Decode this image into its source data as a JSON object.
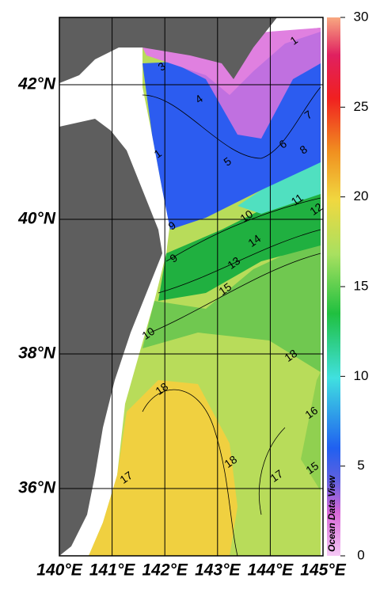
{
  "map": {
    "lat_labels": [
      "42°N",
      "40°N",
      "38°N",
      "36°N"
    ],
    "lon_labels": [
      "140°E",
      "141°E",
      "142°E",
      "143°E",
      "144°E",
      "145°E"
    ],
    "colorbar": {
      "range": [
        0,
        30
      ],
      "ticks": [
        0,
        5,
        10,
        15,
        20,
        25,
        30
      ]
    },
    "contour_labels": [
      "1",
      "3",
      "4",
      "7",
      "6",
      "8",
      "5",
      "1",
      "11",
      "12",
      "10",
      "9",
      "9",
      "14",
      "13",
      "15",
      "10",
      "18",
      "18",
      "16",
      "17",
      "18",
      "17",
      "15"
    ],
    "watermark": "Ocean Data View"
  }
}
